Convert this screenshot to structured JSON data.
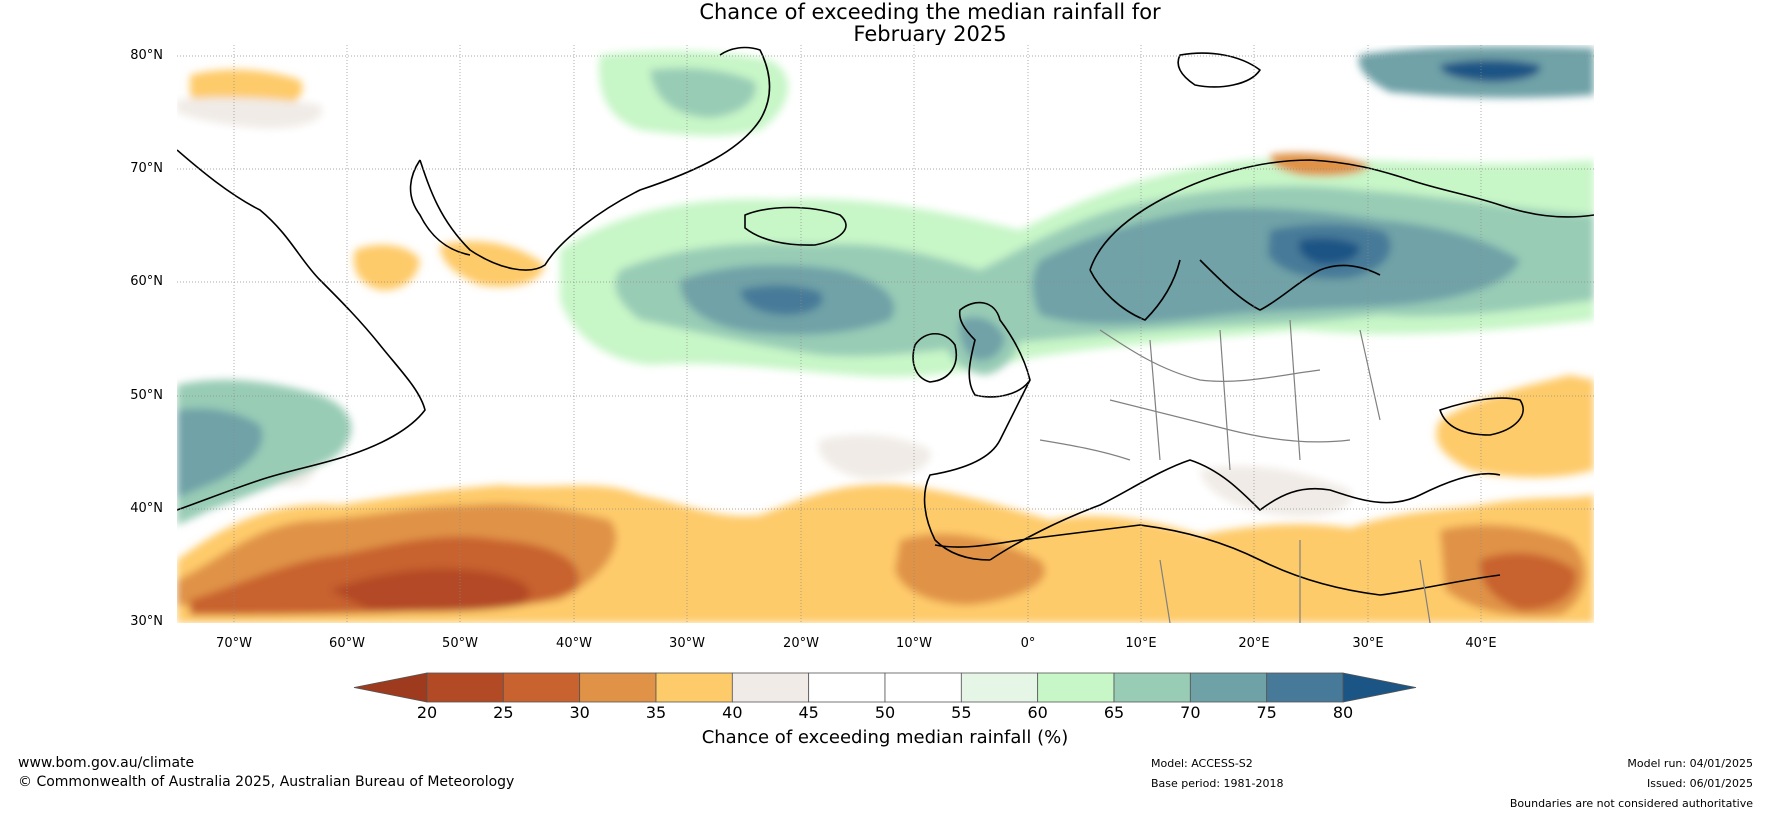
{
  "title": {
    "line1": "Chance of exceeding the median rainfall for",
    "line2": "February 2025"
  },
  "map": {
    "lat_labels": [
      "80°N",
      "70°N",
      "60°N",
      "50°N",
      "40°N",
      "30°N"
    ],
    "lon_labels": [
      "70°W",
      "60°W",
      "50°W",
      "40°W",
      "30°W",
      "20°W",
      "10°W",
      "0°",
      "10°E",
      "20°E",
      "30°E",
      "40°E"
    ],
    "lat_range": [
      30,
      81
    ],
    "lon_range": [
      -75,
      50
    ]
  },
  "colorbar": {
    "ticks": [
      "20",
      "25",
      "30",
      "35",
      "40",
      "45",
      "50",
      "55",
      "60",
      "65",
      "70",
      "75",
      "80"
    ],
    "label": "Chance of exceeding median rainfall (%)",
    "colors": [
      "#9e3a1e",
      "#b34a26",
      "#c8622f",
      "#e09346",
      "#fecb6b",
      "#f0ebe6",
      "#ffffff",
      "#ffffff",
      "#e6f6e6",
      "#c7f6c7",
      "#98ccb5",
      "#6fa2a7",
      "#467a98",
      "#1b5585"
    ]
  },
  "footer": {
    "website": "www.bom.gov.au/climate",
    "copyright": "© Commonwealth of Australia 2025, Australian Bureau of Meteorology",
    "model": "Model: ACCESS-S2",
    "base_period": "Base period: 1981-2018",
    "model_run": "Model run: 04/01/2025",
    "issued": "Issued: 06/01/2025",
    "disclaimer": "Boundaries are not considered authoritative"
  }
}
